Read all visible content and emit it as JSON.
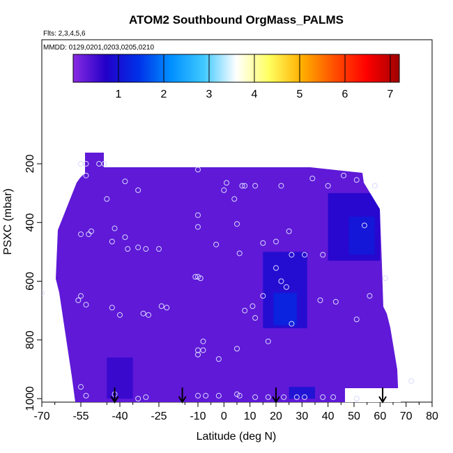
{
  "chart_data": {
    "type": "heatmap",
    "title": "ATOM2 Southbound OrgMass_PALMS",
    "subtitle_flights": "Flts: 2,3,4,5,6",
    "subtitle_dates": "MMDD: 0129,0201,0203,0205,0210",
    "xlabel": "Latitude (deg N)",
    "ylabel": "PSXC (mbar)",
    "xlim": [
      -70,
      80
    ],
    "ylim": [
      1000,
      100
    ],
    "xticks": [
      -70,
      -55,
      -40,
      -25,
      -10,
      0,
      10,
      20,
      30,
      40,
      50,
      60,
      70,
      80
    ],
    "yticks": [
      200,
      400,
      600,
      800,
      1000
    ],
    "colorbar": {
      "min": 0,
      "max": 7.2,
      "ticks": [
        1,
        2,
        3,
        4,
        5,
        6,
        7
      ],
      "colors": [
        "#8a2be2",
        "#2200c8",
        "#0030e8",
        "#0090ff",
        "#40c8ff",
        "#ffffff",
        "#ffff60",
        "#ffb000",
        "#ff5000",
        "#ff0000",
        "#a00000"
      ]
    },
    "background_value": 0.3,
    "enhanced_regions": [
      {
        "lat_min": 15,
        "lat_max": 32,
        "p_min": 500,
        "p_max": 760,
        "value": 0.9
      },
      {
        "lat_min": 19,
        "lat_max": 28,
        "p_min": 640,
        "p_max": 750,
        "value": 1.3
      },
      {
        "lat_min": 40,
        "lat_max": 60,
        "p_min": 300,
        "p_max": 530,
        "value": 0.8
      },
      {
        "lat_min": 48,
        "lat_max": 58,
        "p_min": 380,
        "p_max": 510,
        "value": 1.1
      },
      {
        "lat_min": 25,
        "lat_max": 35,
        "p_min": 960,
        "p_max": 1000,
        "value": 1.0
      },
      {
        "lat_min": -45,
        "lat_max": -35,
        "p_min": 860,
        "p_max": 1000,
        "value": 0.6
      }
    ],
    "sample_points": [
      [
        -55,
        200
      ],
      [
        -53,
        200
      ],
      [
        -48,
        200
      ],
      [
        -46,
        200
      ],
      [
        -53,
        240
      ],
      [
        -45,
        320
      ],
      [
        -38,
        260
      ],
      [
        -33,
        290
      ],
      [
        -10,
        220
      ],
      [
        0,
        290
      ],
      [
        1,
        265
      ],
      [
        4,
        320
      ],
      [
        7,
        275
      ],
      [
        8,
        275
      ],
      [
        12,
        275
      ],
      [
        22,
        275
      ],
      [
        34,
        250
      ],
      [
        40,
        275
      ],
      [
        46,
        240
      ],
      [
        51,
        255
      ],
      [
        58,
        275
      ],
      [
        -55,
        440
      ],
      [
        -52,
        440
      ],
      [
        -51,
        430
      ],
      [
        -42,
        420
      ],
      [
        -43,
        465
      ],
      [
        -38,
        450
      ],
      [
        -37,
        490
      ],
      [
        -33,
        485
      ],
      [
        -30,
        490
      ],
      [
        -25,
        490
      ],
      [
        -10,
        375
      ],
      [
        -10,
        415
      ],
      [
        -3,
        475
      ],
      [
        5,
        405
      ],
      [
        6,
        505
      ],
      [
        15,
        470
      ],
      [
        20,
        465
      ],
      [
        25,
        430
      ],
      [
        26,
        510
      ],
      [
        31,
        510
      ],
      [
        38,
        510
      ],
      [
        54,
        410
      ],
      [
        -10,
        585
      ],
      [
        -11,
        585
      ],
      [
        -9,
        590
      ],
      [
        -70,
        640
      ],
      [
        -56,
        665
      ],
      [
        -55,
        650
      ],
      [
        -53,
        680
      ],
      [
        -43,
        690
      ],
      [
        -40,
        715
      ],
      [
        -31,
        710
      ],
      [
        -29,
        715
      ],
      [
        -24,
        685
      ],
      [
        -22,
        690
      ],
      [
        20,
        555
      ],
      [
        22,
        600
      ],
      [
        24,
        620
      ],
      [
        15,
        650
      ],
      [
        11,
        685
      ],
      [
        8,
        700
      ],
      [
        12,
        725
      ],
      [
        26,
        745
      ],
      [
        37,
        665
      ],
      [
        43,
        670
      ],
      [
        51,
        730
      ],
      [
        56,
        650
      ],
      [
        62,
        590
      ],
      [
        -8,
        805
      ],
      [
        -8,
        835
      ],
      [
        -10,
        835
      ],
      [
        -10,
        850
      ],
      [
        -2,
        865
      ],
      [
        5,
        830
      ],
      [
        17,
        805
      ],
      [
        -55,
        960
      ],
      [
        -53,
        990
      ],
      [
        -42,
        985
      ],
      [
        -33,
        1000
      ],
      [
        -30,
        995
      ],
      [
        -10,
        990
      ],
      [
        -7,
        990
      ],
      [
        -2,
        990
      ],
      [
        5,
        985
      ],
      [
        6,
        990
      ],
      [
        12,
        995
      ],
      [
        17,
        995
      ],
      [
        23,
        995
      ],
      [
        28,
        995
      ],
      [
        31,
        995
      ],
      [
        38,
        995
      ],
      [
        42,
        995
      ],
      [
        51,
        1000
      ],
      [
        72,
        940
      ]
    ],
    "arrows": [
      -42,
      -16,
      20,
      61
    ]
  }
}
